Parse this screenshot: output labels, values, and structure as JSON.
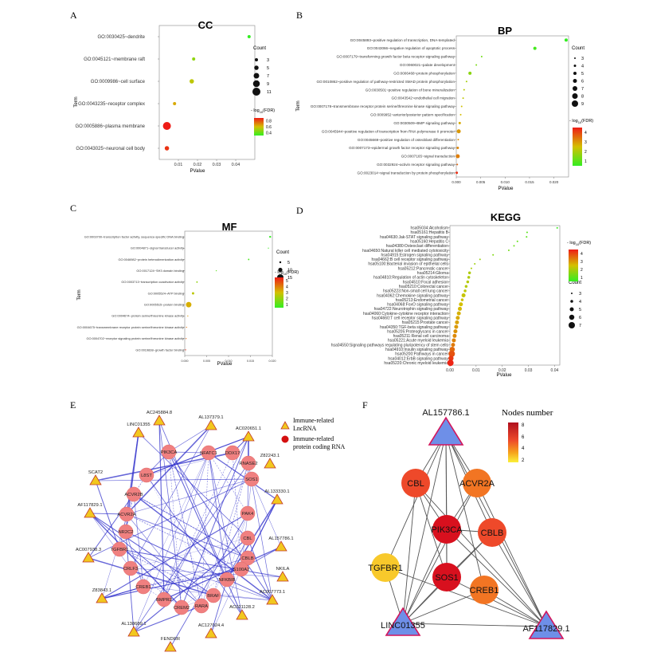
{
  "panels": {
    "a": "A",
    "b": "B",
    "c": "C",
    "d": "D",
    "e": "E",
    "f": "F"
  },
  "legend_common": {
    "count": "Count",
    "fdr": "- log10(FDR)",
    "fdr_prefix": "- log",
    "fdr_sub": "10",
    "fdr_suffix": "(FDR)"
  },
  "colors": {
    "low": "#33ee22",
    "mid": "#d4c000",
    "high": "#ee1c16",
    "node_pink": "#f08080",
    "tri_yellow": "#f2c81e",
    "tri_blue": "#6e8fe8",
    "edge_blue": "#3333cc"
  },
  "chart_data": [
    {
      "id": "cc",
      "type": "scatter",
      "title": "CC",
      "xlabel": "PValue",
      "ylabel": "Term",
      "xlim": [
        0,
        0.05
      ],
      "xticks": [
        0.01,
        0.02,
        0.03,
        0.04
      ],
      "xtick_labels": [
        "0.01",
        "0.02",
        "0.03",
        "0.04"
      ],
      "terms": [
        "GO:0030425~dendrite",
        "GO:0045121~membrane raft",
        "GO:0009986~cell surface",
        "GO:0043235~receptor complex",
        "GO:0005886~plasma membrane",
        "GO:0043025~neuronal cell body"
      ],
      "pvalues": [
        0.047,
        0.018,
        0.017,
        0.008,
        0.004,
        0.004
      ],
      "counts": [
        3,
        3,
        5,
        3,
        11,
        5
      ],
      "fdr": [
        0.3,
        0.5,
        0.6,
        0.7,
        1.0,
        0.95
      ],
      "size_legend": [
        3,
        5,
        7,
        9,
        11
      ],
      "color_legend": [
        "0.8",
        "0.6",
        "0.4"
      ],
      "fdr_range": [
        0.3,
        1.0
      ]
    },
    {
      "id": "bp",
      "type": "scatter",
      "title": "BP",
      "xlabel": "PValue",
      "ylabel": "Term",
      "xlim": [
        0,
        0.023
      ],
      "xticks": [
        0,
        0.005,
        0.01,
        0.015,
        0.02
      ],
      "xtick_labels": [
        "0.000",
        "0.005",
        "0.010",
        "0.015",
        "0.020"
      ],
      "terms": [
        "GO:0045893~positive regulation of transcription, DNA-templated",
        "GO:0043066~negative regulation of apoptotic process",
        "GO:0007179~transforming growth factor beta receptor signaling pathway",
        "GO:0060021~palate development",
        "GO:0006468~protein phosphorylation",
        "GO:0010862~positive regulation of pathway-restricted SMAD protein phosphorylation",
        "GO:0030501~positive regulation of bone mineralization",
        "GO:0043542~endothelial cell migration",
        "GO:0007178~transmembrane receptor protein serine/threonine kinase signaling pathway",
        "GO:0009952~anterior/posterior pattern specification",
        "GO:0030509~BMP signaling pathway",
        "GO:0045944~positive regulation of transcription from RNA polymerase II promoter",
        "GO:0045669~positive regulation of osteoblast differentiation",
        "GO:0007173~epidermal growth factor receptor signaling pathway",
        "GO:0007165~signal transduction",
        "GO:0032924~activin receptor signaling pathway",
        "GO:0023014~signal transduction by protein phosphorylation"
      ],
      "pvalues": [
        0.0225,
        0.0161,
        0.0052,
        0.0041,
        0.0028,
        0.0021,
        0.0016,
        0.0014,
        0.0011,
        0.0009,
        0.0007,
        0.0005,
        0.0004,
        0.0003,
        0.0003,
        0.0002,
        0.0001
      ],
      "counts": [
        5,
        5,
        3,
        3,
        5,
        3,
        3,
        3,
        3,
        3,
        4,
        6,
        3,
        4,
        6,
        3,
        4
      ],
      "fdr": [
        0.5,
        0.7,
        1.2,
        1.3,
        1.5,
        1.8,
        2.0,
        2.1,
        2.3,
        2.4,
        2.6,
        2.8,
        2.9,
        3.0,
        3.1,
        3.4,
        4.0
      ],
      "size_legend": [
        3,
        4,
        5,
        6,
        7,
        8,
        9
      ],
      "color_legend": [
        "4",
        "3",
        "2",
        "1"
      ],
      "fdr_range": [
        0.5,
        4.2
      ]
    },
    {
      "id": "mf",
      "type": "scatter",
      "title": "MF",
      "xlabel": "PValue",
      "ylabel": "Term",
      "xlim": [
        0,
        0.02
      ],
      "xticks": [
        0,
        0.005,
        0.01,
        0.015,
        0.02
      ],
      "xtick_labels": [
        "0.000",
        "0.005",
        "0.010",
        "0.015",
        "0.020"
      ],
      "terms": [
        "GO:0003700~transcription factor activity, sequence-specific DNA binding",
        "GO:0004871~signal transducer activity",
        "GO:0046982~protein heterodimerization activity",
        "GO:0017124~SH3 domain binding",
        "GO:0003713~transcription coactivator activity",
        "GO:0005524~ATP binding",
        "GO:0005515~protein binding",
        "GO:0004674~protein serine/threonine kinase activity",
        "GO:0004675~transmembrane receptor protein serine/threonine kinase activity",
        "GO:0004702~receptor signaling protein serine/threonine kinase activity",
        "GO:0019838~growth factor binding"
      ],
      "pvalues": [
        0.0195,
        0.0191,
        0.0146,
        0.0072,
        0.0028,
        0.0019,
        0.0009,
        0.0007,
        0.0004,
        0.0003,
        0.0002
      ],
      "counts": [
        5,
        3,
        4,
        3,
        4,
        6,
        13,
        3,
        3,
        3,
        3
      ],
      "fdr": [
        0.5,
        0.6,
        0.8,
        1.1,
        1.8,
        2.4,
        3.0,
        3.3,
        3.8,
        4.0,
        4.8
      ],
      "size_legend": [
        5,
        10,
        15
      ],
      "color_legend": [
        "5",
        "4",
        "3",
        "2",
        "1"
      ],
      "fdr_range": [
        0.5,
        5.0
      ]
    },
    {
      "id": "kegg",
      "type": "scatter",
      "title": "KEGG",
      "xlabel": "PValue",
      "ylabel": "",
      "xlim": [
        0,
        0.042
      ],
      "xticks": [
        0,
        0.01,
        0.02,
        0.03,
        0.04
      ],
      "xtick_labels": [
        "0.00",
        "0.01",
        "0.02",
        "0.03",
        "0.04"
      ],
      "terms": [
        "hsa05034:Alcoholism",
        "hsa05161:Hepatitis B",
        "hsa04630:Jak-STAT signaling pathway",
        "hsa05160:Hepatitis C",
        "hsa04380:Osteoclast differentiation",
        "hsa04650:Natural killer cell mediated cytotoxicity",
        "hsa04915:Estrogen signaling pathway",
        "hsa04662:B cell receptor signaling pathway",
        "hsa05100:Bacterial invasion of epithelial cells",
        "hsa05212:Pancreatic cancer",
        "hsa05214:Glioma",
        "hsa04810:Regulation of actin cytoskeleton",
        "hsa04510:Focal adhesion",
        "hsa05210:Colorectal cancer",
        "hsa05223:Non-small cell lung cancer",
        "hsa04062:Chemokine signaling pathway",
        "hsa05213:Endometrial cancer",
        "hsa04068:FoxO signaling pathway",
        "hsa04722:Neurotrophin signaling pathway",
        "hsa04060:Cytokine-cytokine receptor interaction",
        "hsa04660:T cell receptor signaling pathway",
        "hsa05215:Prostate cancer",
        "hsa04350:TGF-beta signaling pathway",
        "hsa05205:Proteoglycans in cancer",
        "hsa05211:Renal cell carcinoma",
        "hsa05221:Acute myeloid leukemia",
        "hsa04550:Signaling pathways regulating pluripotency of stem cells",
        "hsa04910:Insulin signaling pathway",
        "hsa05200:Pathways in cancer",
        "hsa04012:ErbB signaling pathway",
        "hsa05220:Chronic myeloid leukemia"
      ],
      "pvalues": [
        0.041,
        0.0295,
        0.0293,
        0.0258,
        0.0245,
        0.0225,
        0.0165,
        0.0115,
        0.0095,
        0.0082,
        0.0075,
        0.0072,
        0.0068,
        0.0062,
        0.0058,
        0.0052,
        0.0047,
        0.0042,
        0.0038,
        0.0034,
        0.003,
        0.0027,
        0.0024,
        0.0021,
        0.0018,
        0.0015,
        0.0012,
        0.0009,
        0.0007,
        0.0004,
        0.0002
      ],
      "counts": [
        3,
        3,
        3,
        3,
        3,
        3,
        3,
        3,
        3,
        3,
        4,
        4,
        4,
        4,
        4,
        5,
        4,
        5,
        5,
        5,
        5,
        5,
        5,
        5,
        5,
        5,
        5,
        6,
        7,
        6,
        7
      ],
      "fdr": [
        0.4,
        0.8,
        0.8,
        0.9,
        1.0,
        1.1,
        1.3,
        1.6,
        1.7,
        1.8,
        1.9,
        1.9,
        2.0,
        2.0,
        2.1,
        2.2,
        2.3,
        2.4,
        2.5,
        2.6,
        2.7,
        2.8,
        2.9,
        3.0,
        3.1,
        3.2,
        3.3,
        3.5,
        3.8,
        4.1,
        4.4
      ],
      "size_legend": [
        3,
        4,
        5,
        6,
        7
      ],
      "color_legend": [
        "4",
        "3",
        "2",
        "1"
      ],
      "fdr_range": [
        0.3,
        4.5
      ]
    }
  ],
  "network_e": {
    "legend": {
      "tri_label_1": "Immune-related",
      "tri_label_2": "LncRNA",
      "circ_label_1": "Immune-related",
      "circ_label_2": "protein coding RNA"
    },
    "lnc_nodes": [
      "AC245884.8",
      "AL137379.1",
      "AC020651.1",
      "Z82243.1",
      "AL133330.1",
      "AL157786.1",
      "NKILA",
      "AC007773.1",
      "AC021128.2",
      "AC127024.4",
      "FENDRR",
      "AL138689.1",
      "Z83843.1",
      "AC007938.3",
      "AF117829.1",
      "SCAT2",
      "LINC01355"
    ],
    "pc_nodes": [
      "PIK3CA",
      "NFATC1",
      "DDX17",
      "RNASE2",
      "SOS1",
      "PAK4",
      "CBL",
      "CBLB",
      "S100A2",
      "NFKBIB",
      "BRAF",
      "RARA",
      "CREM2",
      "BMPR2",
      "CREB1",
      "CRLF3",
      "TGFBR1",
      "NR2C2",
      "ACVR2A",
      "ACVR2B",
      "L8ST"
    ]
  },
  "network_f": {
    "legend_title": "Nodes number",
    "legend_ticks": [
      "8",
      "6",
      "4",
      "2"
    ],
    "nodes": [
      {
        "label": "AL157786.1",
        "shape": "triangle",
        "degree": 6
      },
      {
        "label": "CBL",
        "shape": "circle",
        "degree": 6
      },
      {
        "label": "ACVR2A",
        "shape": "circle",
        "degree": 5
      },
      {
        "label": "PIK3CA",
        "shape": "circle",
        "degree": 8
      },
      {
        "label": "CBLB",
        "shape": "circle",
        "degree": 6
      },
      {
        "label": "TGFBR1",
        "shape": "circle",
        "degree": 3
      },
      {
        "label": "SOS1",
        "shape": "circle",
        "degree": 8
      },
      {
        "label": "CREB1",
        "shape": "circle",
        "degree": 5
      },
      {
        "label": "LINC01355",
        "shape": "triangle",
        "degree": 6
      },
      {
        "label": "AF117829.1",
        "shape": "triangle",
        "degree": 6
      }
    ]
  }
}
